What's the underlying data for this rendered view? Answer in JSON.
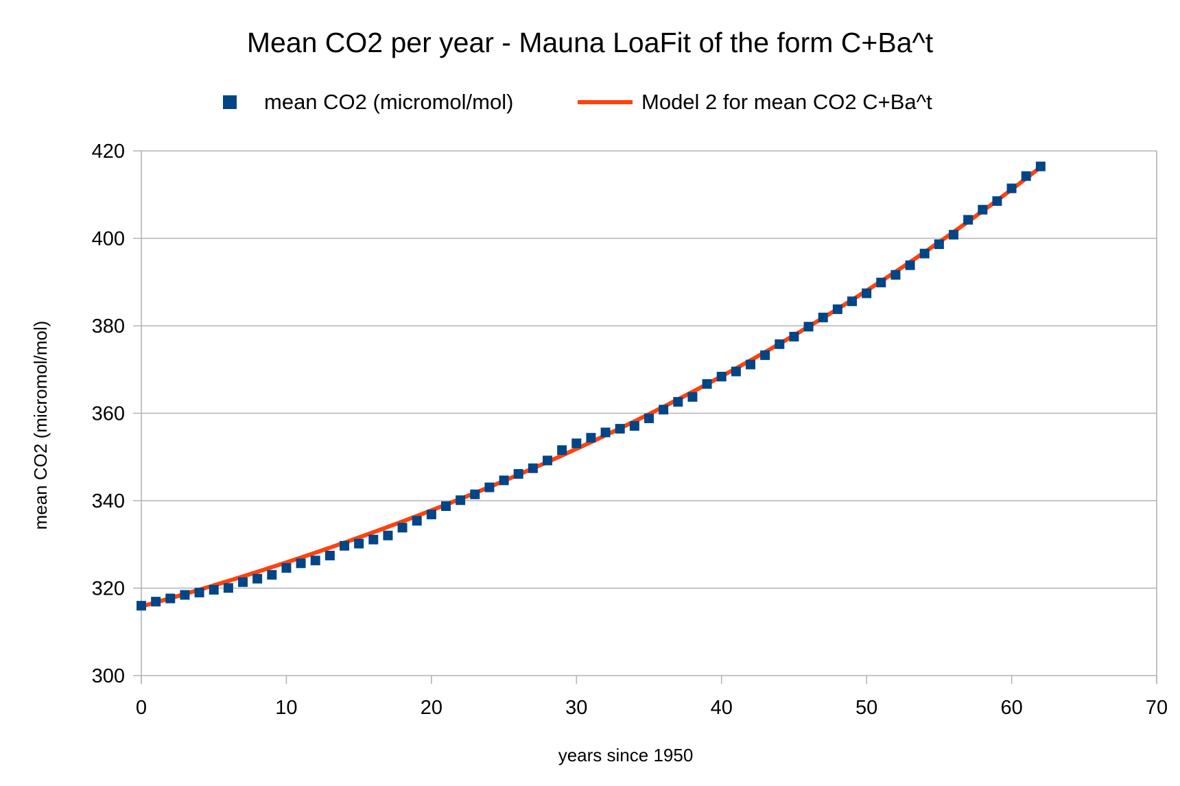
{
  "chart_data": {
    "type": "scatter",
    "title": "Mean CO2 per year - Mauna LoaFit of the form C+Ba^t",
    "xlabel": "years since 1950",
    "ylabel": "mean CO2 (micromol/mol)",
    "xlim": [
      0,
      70
    ],
    "ylim": [
      300,
      420
    ],
    "xticks": [
      "0",
      "10",
      "20",
      "30",
      "40",
      "50",
      "60",
      "70"
    ],
    "yticks": [
      "300",
      "320",
      "340",
      "360",
      "380",
      "400",
      "420"
    ],
    "grid": "horizontal",
    "legend_position": "top",
    "series": [
      {
        "name": "mean CO2 (micromol/mol)",
        "kind": "points",
        "marker": "square",
        "color": "#004586",
        "x": [
          0,
          1,
          2,
          3,
          4,
          5,
          6,
          7,
          8,
          9,
          10,
          11,
          12,
          13,
          14,
          15,
          16,
          17,
          18,
          19,
          20,
          21,
          22,
          23,
          24,
          25,
          26,
          27,
          28,
          29,
          30,
          31,
          32,
          33,
          34,
          35,
          36,
          37,
          38,
          39,
          40,
          41,
          42,
          43,
          44,
          45,
          46,
          47,
          48,
          49,
          50,
          51,
          52,
          53,
          54,
          55,
          56,
          57,
          58,
          59,
          60,
          61,
          62
        ],
        "y": [
          315.98,
          316.91,
          317.64,
          318.45,
          318.99,
          319.62,
          320.04,
          321.38,
          322.16,
          323.04,
          324.62,
          325.68,
          326.32,
          327.45,
          329.68,
          330.18,
          331.11,
          332.04,
          333.83,
          335.4,
          336.84,
          338.75,
          340.11,
          341.45,
          343.05,
          344.65,
          346.12,
          347.42,
          349.19,
          351.57,
          353.12,
          354.39,
          355.61,
          356.45,
          357.1,
          358.83,
          360.82,
          362.61,
          363.73,
          366.7,
          368.38,
          369.55,
          371.14,
          373.28,
          375.8,
          377.52,
          379.8,
          381.9,
          383.79,
          385.6,
          387.43,
          389.9,
          391.65,
          393.85,
          396.52,
          398.65,
          400.83,
          404.24,
          406.55,
          408.52,
          411.43,
          414.24,
          416.45
        ]
      },
      {
        "name": "Model 2 for mean CO2 C+Ba^t",
        "kind": "line",
        "color": "#ff420e",
        "model": {
          "C": 260.0,
          "B": 55.8,
          "a": 1.01675
        },
        "x_range": [
          0,
          62
        ]
      }
    ]
  }
}
